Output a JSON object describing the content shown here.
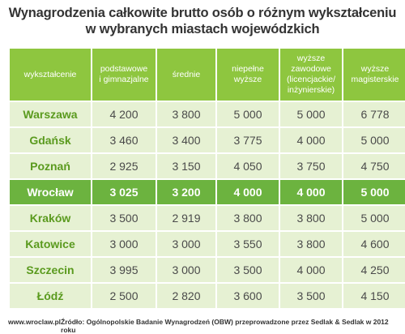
{
  "title_line1": "Wynagrodzenia całkowite brutto osób o różnym wykształceniu",
  "title_line2": "w wybranych miastach wojewódzkich",
  "footer": {
    "site": "www.wroclaw.pl",
    "source": "Źródło: Ogólnopolskie Badanie Wynagrodzeń (OBW) przeprowadzone przez Sedlak & Sedlak w 2012 roku"
  },
  "chart_data": {
    "type": "table",
    "columns": [
      "wykształcenie",
      "podstawowe\ni gimnazjalne",
      "średnie",
      "niepełne wyższe",
      "wyższe\nzawodowe\n(licencjackie/\ninżynierskie)",
      "wyższe\nmagisterskie"
    ],
    "rows": [
      {
        "city": "Warszawa",
        "values": [
          "4 200",
          "3 800",
          "5 000",
          "5 000",
          "6 778"
        ]
      },
      {
        "city": "Gdańsk",
        "values": [
          "3 460",
          "3 400",
          "3 775",
          "4 000",
          "5 000"
        ]
      },
      {
        "city": "Poznań",
        "values": [
          "2 925",
          "3 150",
          "4 050",
          "3 750",
          "4 750"
        ]
      },
      {
        "city": "Wrocław",
        "values": [
          "3 025",
          "3 200",
          "4 000",
          "4 000",
          "5 000"
        ],
        "highlight": true
      },
      {
        "city": "Kraków",
        "values": [
          "3 500",
          "2 919",
          "3 800",
          "3 800",
          "5 000"
        ]
      },
      {
        "city": "Katowice",
        "values": [
          "3 000",
          "3 000",
          "3 550",
          "3 800",
          "4 600"
        ]
      },
      {
        "city": "Szczecin",
        "values": [
          "3 995",
          "3 000",
          "3 500",
          "4 000",
          "4 250"
        ]
      },
      {
        "city": "Łódź",
        "values": [
          "2 500",
          "2 820",
          "3 600",
          "3 500",
          "4 150"
        ]
      }
    ],
    "colors": {
      "header": "#8ec63f",
      "row": "#e6f1d3",
      "highlight_row": "#6cb33f",
      "city_text": "#5a9a1e"
    }
  }
}
